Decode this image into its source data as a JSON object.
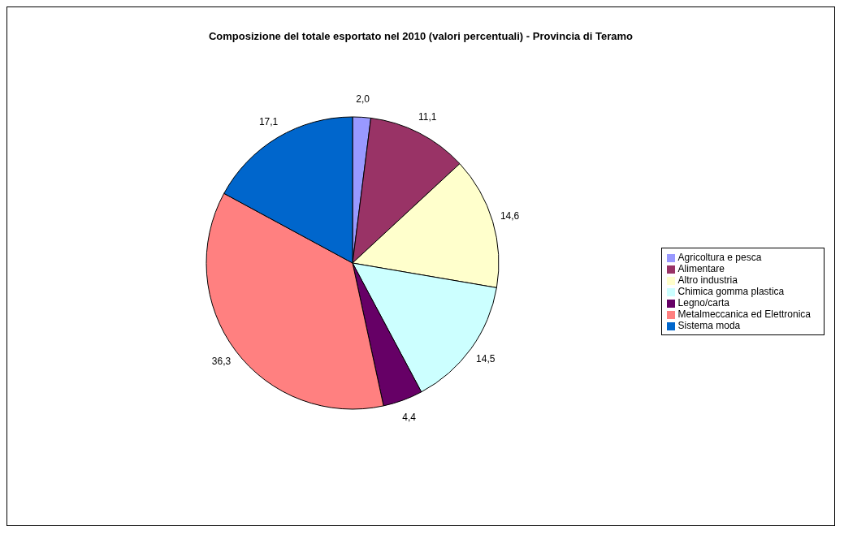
{
  "chart_data": {
    "type": "pie",
    "title": "Composizione del totale esportato nel 2010 (valori percentuali) - Provincia di Teramo",
    "categories": [
      "Agricoltura e pesca",
      "Alimentare",
      "Altro industria",
      "Chimica gomma plastica",
      "Legno/carta",
      "Metalmeccanica ed Elettronica",
      "Sistema moda"
    ],
    "values": [
      2.0,
      11.1,
      14.6,
      14.5,
      4.4,
      36.3,
      17.1
    ],
    "value_labels": [
      "2,0",
      "11,1",
      "14,6",
      "14,5",
      "4,4",
      "36,3",
      "17,1"
    ],
    "colors": [
      "#9999ff",
      "#993366",
      "#ffffcc",
      "#ccffff",
      "#660066",
      "#ff8080",
      "#0066cc"
    ],
    "legend": "right"
  }
}
